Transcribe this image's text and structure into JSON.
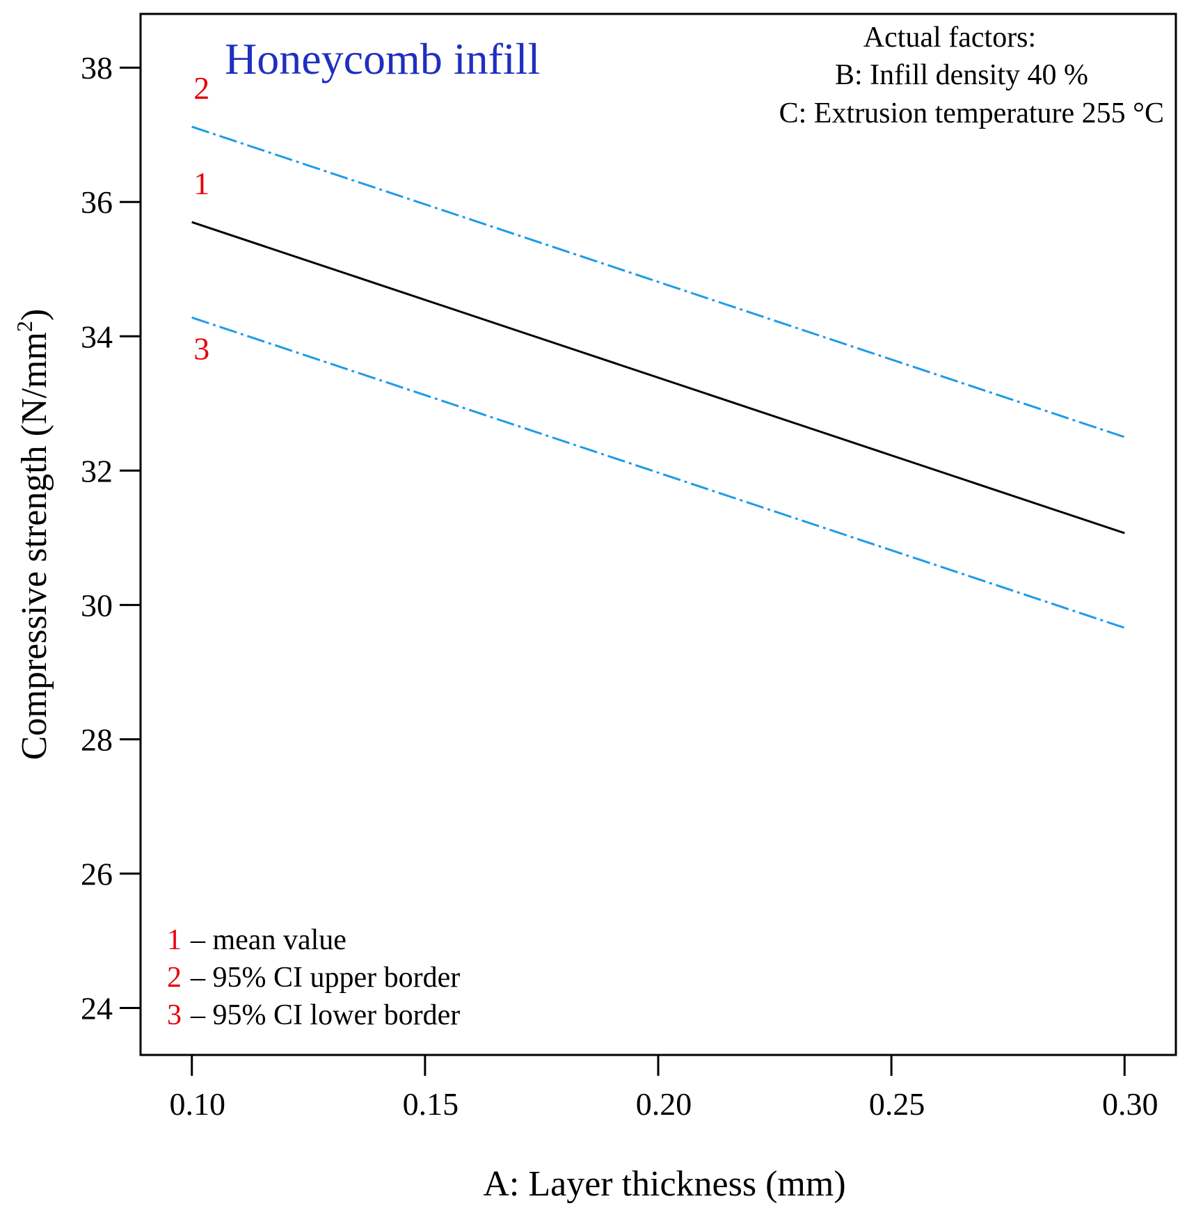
{
  "chart_data": {
    "type": "line",
    "title": "Honeycomb infill",
    "xlabel": "A: Layer thickness (mm)",
    "ylabel": "Compressive strength (N/mm",
    "ylabel_sup": "2",
    "ylabel_close": ")",
    "xlim": [
      0.089,
      0.311
    ],
    "ylim": [
      23.3,
      38.8
    ],
    "x_ticks": [
      0.1,
      0.15,
      0.2,
      0.25,
      0.3
    ],
    "x_tick_labels": [
      "0.10",
      "0.15",
      "0.20",
      "0.25",
      "0.30"
    ],
    "y_ticks": [
      24,
      26,
      28,
      30,
      32,
      34,
      36,
      38
    ],
    "y_tick_labels": [
      "24",
      "26",
      "28",
      "30",
      "32",
      "34",
      "36",
      "38"
    ],
    "grid": false,
    "series": [
      {
        "id": "1",
        "name": "mean value",
        "x": [
          0.1,
          0.3
        ],
        "y": [
          35.7,
          31.07
        ],
        "color": "#000000",
        "style": "solid"
      },
      {
        "id": "2",
        "name": "95% CI upper border",
        "x": [
          0.1,
          0.3
        ],
        "y": [
          37.12,
          32.5
        ],
        "color": "#1f9be8",
        "style": "dashed"
      },
      {
        "id": "3",
        "name": "95% CI lower border",
        "x": [
          0.1,
          0.3
        ],
        "y": [
          34.28,
          29.66
        ],
        "color": "#1f9be8",
        "style": "dashed"
      }
    ],
    "series_number_labels": [
      {
        "id": "2",
        "text": "2"
      },
      {
        "id": "1",
        "text": "1"
      },
      {
        "id": "3",
        "text": "3"
      }
    ],
    "actual_factors": {
      "heading": "Actual factors:",
      "lines": [
        "B: Infill density 40 %",
        "C: Extrusion temperature 255 °C"
      ]
    },
    "legend": {
      "placement": "bottom-left",
      "items": [
        {
          "num": "1",
          "text": "– mean value"
        },
        {
          "num": "2",
          "text": "– 95% CI upper border"
        },
        {
          "num": "3",
          "text": "– 95% CI lower border"
        }
      ]
    },
    "colors": {
      "mean": "#000000",
      "ci": "#1f9be8",
      "number_labels": "#e8000b",
      "title": "#1f2fc0"
    }
  }
}
